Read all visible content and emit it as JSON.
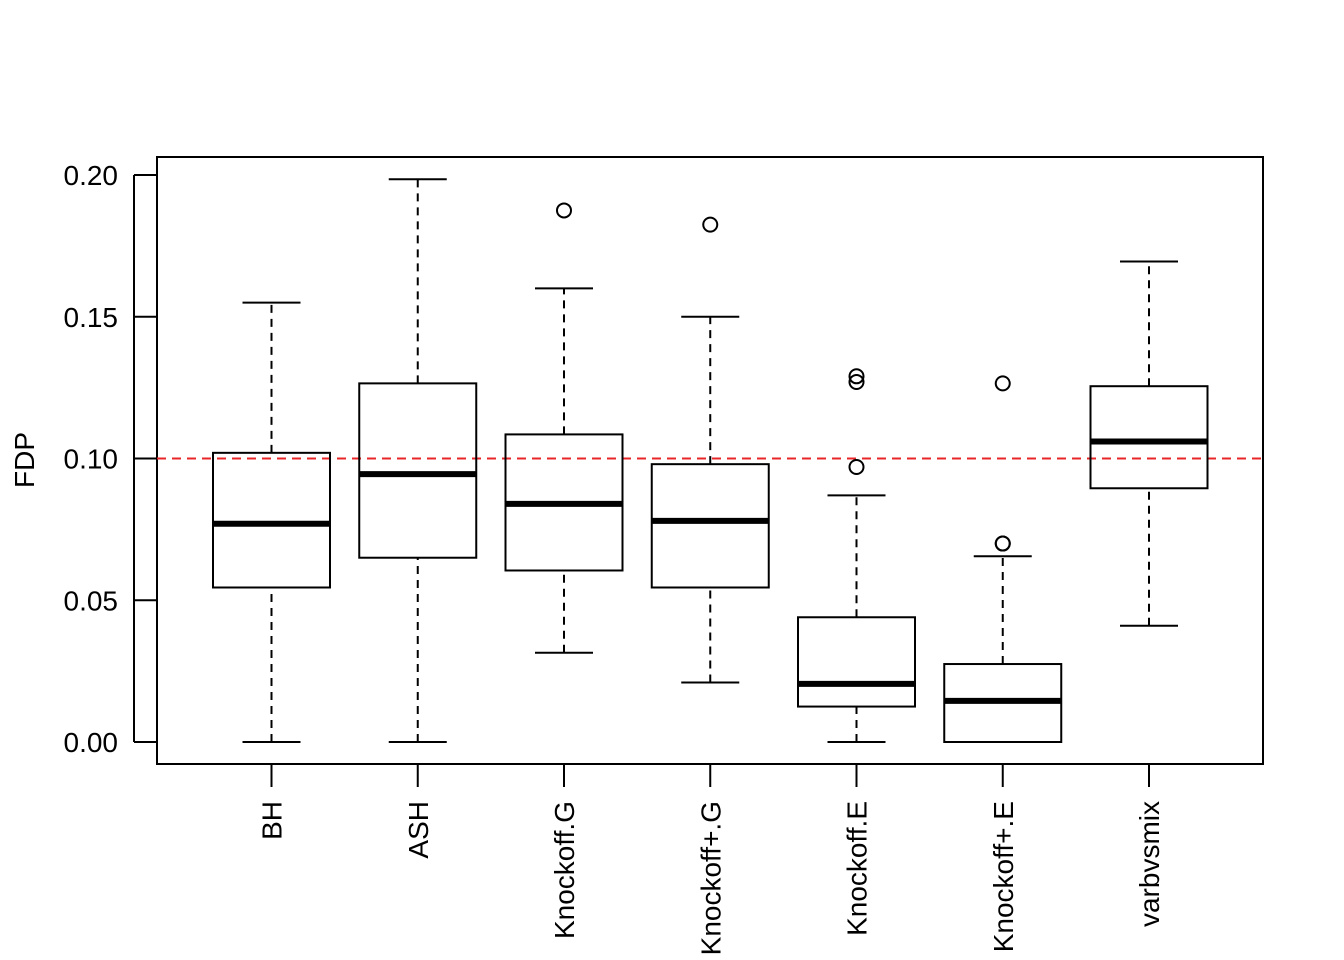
{
  "chart_data": {
    "type": "box",
    "title": "",
    "xlabel": "",
    "ylabel": "FDP",
    "ylim": [
      -0.008,
      0.206
    ],
    "yticks": [
      "0.00",
      "0.05",
      "0.10",
      "0.15",
      "0.20"
    ],
    "ytick_values": [
      0,
      0.05,
      0.1,
      0.15,
      0.2
    ],
    "reference_line": {
      "y": 0.1,
      "color": "#e8262a",
      "style": "dashed"
    },
    "grid": false,
    "categories": [
      "BH",
      "ASH",
      "Knockoff.G",
      "Knockoff+.G",
      "Knockoff.E",
      "Knockoff+.E",
      "varbvsmix"
    ],
    "boxes": [
      {
        "min": 0.0,
        "q1": 0.0545,
        "median": 0.077,
        "q3": 0.102,
        "max": 0.155,
        "outliers": []
      },
      {
        "min": 0.0,
        "q1": 0.065,
        "median": 0.0945,
        "q3": 0.1265,
        "max": 0.1985,
        "outliers": []
      },
      {
        "min": 0.0315,
        "q1": 0.0605,
        "median": 0.084,
        "q3": 0.1085,
        "max": 0.16,
        "outliers": [
          0.1875
        ]
      },
      {
        "min": 0.021,
        "q1": 0.0545,
        "median": 0.078,
        "q3": 0.098,
        "max": 0.15,
        "outliers": [
          0.1825
        ]
      },
      {
        "min": 0.0,
        "q1": 0.0125,
        "median": 0.0205,
        "q3": 0.044,
        "max": 0.087,
        "outliers": [
          0.097,
          0.127,
          0.129
        ]
      },
      {
        "min": 0.0,
        "q1": 0.0,
        "median": 0.0145,
        "q3": 0.0275,
        "max": 0.0655,
        "outliers": [
          0.07,
          0.07,
          0.1265
        ]
      },
      {
        "min": 0.041,
        "q1": 0.0895,
        "median": 0.106,
        "q3": 0.1255,
        "max": 0.1695,
        "outliers": []
      }
    ],
    "colors": {
      "line": "#000000",
      "box_fill": "#ffffff",
      "reference": "#e8262a"
    }
  }
}
